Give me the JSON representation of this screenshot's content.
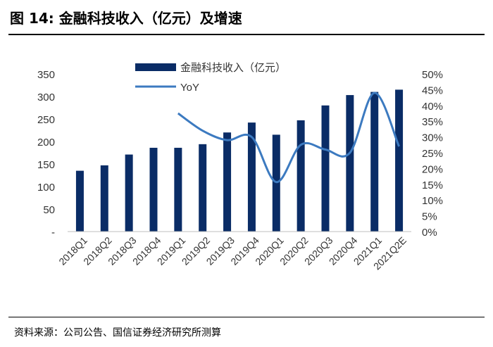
{
  "figure": {
    "title": "图 14:  金融科技收入（亿元）及增速",
    "source": "资料来源：公司公告、国信证券经济研究所测算"
  },
  "chart_data": {
    "type": "bar",
    "categories": [
      "2018Q1",
      "2018Q2",
      "2018Q3",
      "2018Q4",
      "2019Q1",
      "2019Q2",
      "2019Q3",
      "2019Q4",
      "2020Q1",
      "2020Q2",
      "2020Q3",
      "2020Q4",
      "2021Q1",
      "2021Q2E"
    ],
    "series": [
      {
        "name": "金融科技收入（亿元）",
        "type": "bar",
        "axis": "left",
        "color": "#0a2c66",
        "values": [
          135,
          147,
          171,
          186,
          186,
          194,
          220,
          242,
          215,
          247,
          280,
          303,
          310,
          315
        ]
      },
      {
        "name": "YoY",
        "type": "line",
        "axis": "right",
        "color": "#3c7ac0",
        "values": [
          null,
          null,
          null,
          null,
          37.5,
          32.0,
          29.0,
          30.0,
          15.7,
          27.5,
          26.0,
          25.0,
          44.0,
          27.0
        ]
      }
    ],
    "left_axis": {
      "min": 0,
      "max": 350,
      "step": 50,
      "tick_labels": [
        "-",
        "50",
        "100",
        "150",
        "200",
        "250",
        "300",
        "350"
      ]
    },
    "right_axis": {
      "min": 0,
      "max": 50,
      "step": 5,
      "tick_labels": [
        "0%",
        "5%",
        "10%",
        "15%",
        "20%",
        "25%",
        "30%",
        "35%",
        "40%",
        "45%",
        "50%"
      ]
    },
    "legend": {
      "position": "top-center",
      "entries": [
        "金融科技收入（亿元）",
        "YoY"
      ]
    }
  }
}
